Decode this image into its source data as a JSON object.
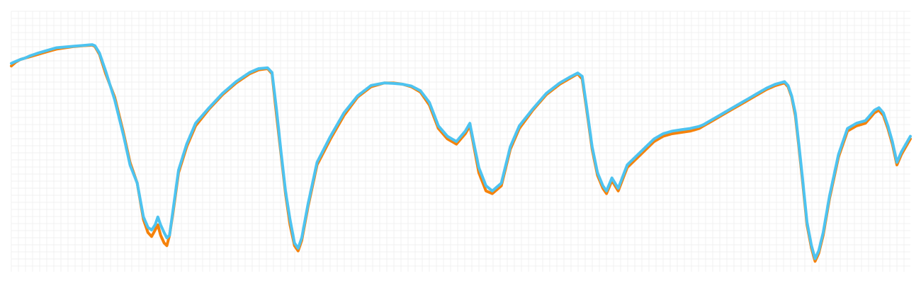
{
  "chart_data": {
    "type": "line",
    "title": "",
    "xlabel": "",
    "ylabel": "",
    "grid": true,
    "xlim": [
      0,
      100
    ],
    "ylim": [
      0,
      100
    ],
    "series": [
      {
        "color": "#f5820b",
        "points": [
          [
            0,
            79
          ],
          [
            0.5,
            80.5
          ],
          [
            1,
            81.5
          ],
          [
            1.5,
            82
          ],
          [
            2,
            82.5
          ],
          [
            3,
            83.5
          ],
          [
            4,
            84.5
          ],
          [
            5,
            85.5
          ],
          [
            6,
            86
          ],
          [
            7,
            86.5
          ],
          [
            8,
            86.8
          ],
          [
            9,
            87
          ],
          [
            9.3,
            86.5
          ],
          [
            9.8,
            83.5
          ],
          [
            10.5,
            76
          ],
          [
            11.5,
            67
          ],
          [
            12.5,
            53
          ],
          [
            13.2,
            42
          ],
          [
            14,
            34
          ],
          [
            14.7,
            20
          ],
          [
            15.2,
            15
          ],
          [
            15.6,
            13.5
          ],
          [
            16,
            16
          ],
          [
            16.3,
            18
          ],
          [
            16.6,
            14
          ],
          [
            17,
            11
          ],
          [
            17.3,
            10
          ],
          [
            17.6,
            14
          ],
          [
            18,
            23
          ],
          [
            18.6,
            38
          ],
          [
            19.5,
            48
          ],
          [
            20.5,
            56
          ],
          [
            22,
            62.5
          ],
          [
            23.5,
            68
          ],
          [
            25,
            72.5
          ],
          [
            26.5,
            76
          ],
          [
            27.5,
            77.5
          ],
          [
            28.5,
            78
          ],
          [
            29,
            76
          ],
          [
            29.5,
            60
          ],
          [
            30,
            45
          ],
          [
            30.5,
            30
          ],
          [
            31,
            18
          ],
          [
            31.5,
            10
          ],
          [
            31.9,
            8
          ],
          [
            32.3,
            12
          ],
          [
            33,
            25
          ],
          [
            34,
            41
          ],
          [
            35.5,
            51
          ],
          [
            37,
            60
          ],
          [
            38.5,
            67
          ],
          [
            40,
            71
          ],
          [
            41.5,
            72.5
          ],
          [
            42.5,
            72.5
          ],
          [
            43.5,
            72
          ],
          [
            44.5,
            71
          ],
          [
            45.5,
            69
          ],
          [
            46.5,
            64
          ],
          [
            47.5,
            55
          ],
          [
            48.5,
            51
          ],
          [
            49.5,
            49
          ],
          [
            50.5,
            53
          ],
          [
            51,
            56
          ],
          [
            51.4,
            49
          ],
          [
            52,
            38
          ],
          [
            52.8,
            31
          ],
          [
            53.5,
            30
          ],
          [
            54.5,
            33
          ],
          [
            55.5,
            47
          ],
          [
            56.5,
            55
          ],
          [
            58,
            62
          ],
          [
            59.5,
            68
          ],
          [
            61,
            72
          ],
          [
            62,
            74
          ],
          [
            63,
            76
          ],
          [
            63.5,
            74
          ],
          [
            64,
            62
          ],
          [
            64.6,
            47
          ],
          [
            65.2,
            37
          ],
          [
            65.8,
            32
          ],
          [
            66.2,
            30
          ],
          [
            66.8,
            35
          ],
          [
            67.5,
            31
          ],
          [
            68.5,
            40
          ],
          [
            70,
            45
          ],
          [
            71.5,
            50
          ],
          [
            72.5,
            52
          ],
          [
            73.5,
            53
          ],
          [
            74.5,
            53.5
          ],
          [
            75.5,
            54
          ],
          [
            76.5,
            55
          ],
          [
            77,
            56
          ],
          [
            78,
            58
          ],
          [
            79,
            60
          ],
          [
            80,
            62
          ],
          [
            81,
            64
          ],
          [
            82,
            66
          ],
          [
            83,
            68
          ],
          [
            84,
            70
          ],
          [
            85,
            71.5
          ],
          [
            86,
            72.5
          ],
          [
            86.4,
            71
          ],
          [
            86.8,
            67
          ],
          [
            87.2,
            60
          ],
          [
            87.6,
            48
          ],
          [
            88,
            35
          ],
          [
            88.5,
            18
          ],
          [
            89,
            9
          ],
          [
            89.4,
            4
          ],
          [
            89.8,
            7
          ],
          [
            90.3,
            14
          ],
          [
            91,
            28
          ],
          [
            92,
            44
          ],
          [
            93,
            54
          ],
          [
            94,
            56
          ],
          [
            95,
            57
          ],
          [
            95.5,
            59
          ],
          [
            96,
            61
          ],
          [
            96.5,
            62
          ],
          [
            97,
            60
          ],
          [
            97.5,
            55
          ],
          [
            98,
            49
          ],
          [
            98.5,
            41
          ],
          [
            99,
            45
          ],
          [
            100,
            51
          ]
        ]
      },
      {
        "color": "#4dc3f0",
        "points": [
          [
            0,
            80
          ],
          [
            0.5,
            80.8
          ],
          [
            1,
            81.5
          ],
          [
            1.5,
            82
          ],
          [
            2,
            82.8
          ],
          [
            3,
            84
          ],
          [
            4,
            85
          ],
          [
            5,
            86
          ],
          [
            6,
            86.3
          ],
          [
            7,
            86.6
          ],
          [
            8,
            86.9
          ],
          [
            9,
            87.2
          ],
          [
            9.3,
            86.8
          ],
          [
            9.8,
            84
          ],
          [
            10.5,
            77
          ],
          [
            11.5,
            66
          ],
          [
            12.5,
            52
          ],
          [
            13.2,
            41
          ],
          [
            14,
            34
          ],
          [
            14.7,
            21
          ],
          [
            15.2,
            17
          ],
          [
            15.6,
            16
          ],
          [
            16,
            18
          ],
          [
            16.3,
            21
          ],
          [
            16.6,
            18
          ],
          [
            17,
            15
          ],
          [
            17.3,
            13
          ],
          [
            17.6,
            14
          ],
          [
            18,
            24
          ],
          [
            18.6,
            39
          ],
          [
            19.5,
            49
          ],
          [
            20.5,
            57
          ],
          [
            22,
            63
          ],
          [
            23.5,
            68.5
          ],
          [
            25,
            73
          ],
          [
            26.5,
            76.5
          ],
          [
            27.5,
            78
          ],
          [
            28.5,
            78.3
          ],
          [
            29,
            76.5
          ],
          [
            29.5,
            62
          ],
          [
            30,
            46
          ],
          [
            30.5,
            31
          ],
          [
            31,
            20
          ],
          [
            31.5,
            11
          ],
          [
            31.9,
            9
          ],
          [
            32.3,
            13
          ],
          [
            33,
            26
          ],
          [
            34,
            42
          ],
          [
            35.5,
            52
          ],
          [
            37,
            61
          ],
          [
            38.5,
            67.5
          ],
          [
            40,
            71.5
          ],
          [
            41.5,
            72.5
          ],
          [
            42.5,
            72.3
          ],
          [
            43.5,
            72
          ],
          [
            44.5,
            71.3
          ],
          [
            45.5,
            69.5
          ],
          [
            46.5,
            65
          ],
          [
            47.5,
            56
          ],
          [
            48.5,
            52
          ],
          [
            49.5,
            50
          ],
          [
            50.5,
            54
          ],
          [
            51,
            57
          ],
          [
            51.4,
            50
          ],
          [
            52,
            40
          ],
          [
            52.8,
            33
          ],
          [
            53.5,
            31
          ],
          [
            54.5,
            34
          ],
          [
            55.5,
            48
          ],
          [
            56.5,
            56
          ],
          [
            58,
            62.5
          ],
          [
            59.5,
            68.5
          ],
          [
            61,
            72.5
          ],
          [
            62,
            74.5
          ],
          [
            63,
            76.3
          ],
          [
            63.5,
            75
          ],
          [
            64,
            63
          ],
          [
            64.6,
            48
          ],
          [
            65.2,
            38
          ],
          [
            65.8,
            33
          ],
          [
            66.2,
            31
          ],
          [
            66.8,
            36
          ],
          [
            67.5,
            32
          ],
          [
            68.5,
            41
          ],
          [
            70,
            46
          ],
          [
            71.5,
            51
          ],
          [
            72.5,
            53
          ],
          [
            73.5,
            54
          ],
          [
            74.5,
            54.5
          ],
          [
            75.5,
            55
          ],
          [
            76.5,
            55.8
          ],
          [
            77,
            56.5
          ],
          [
            78,
            58.5
          ],
          [
            79,
            60.5
          ],
          [
            80,
            62.5
          ],
          [
            81,
            64.5
          ],
          [
            82,
            66.5
          ],
          [
            83,
            68.5
          ],
          [
            84,
            70.5
          ],
          [
            85,
            72
          ],
          [
            86,
            73
          ],
          [
            86.4,
            71.5
          ],
          [
            86.8,
            67.5
          ],
          [
            87.2,
            61
          ],
          [
            87.6,
            49
          ],
          [
            88,
            36
          ],
          [
            88.5,
            19
          ],
          [
            89,
            10
          ],
          [
            89.4,
            5
          ],
          [
            89.8,
            8
          ],
          [
            90.3,
            15
          ],
          [
            91,
            29
          ],
          [
            92,
            45
          ],
          [
            93,
            55
          ],
          [
            94,
            57
          ],
          [
            95,
            58
          ],
          [
            95.5,
            60
          ],
          [
            96,
            62
          ],
          [
            96.5,
            63
          ],
          [
            97,
            61
          ],
          [
            97.5,
            56
          ],
          [
            98,
            50
          ],
          [
            98.5,
            42
          ],
          [
            99,
            46
          ],
          [
            100,
            52
          ]
        ]
      }
    ]
  }
}
